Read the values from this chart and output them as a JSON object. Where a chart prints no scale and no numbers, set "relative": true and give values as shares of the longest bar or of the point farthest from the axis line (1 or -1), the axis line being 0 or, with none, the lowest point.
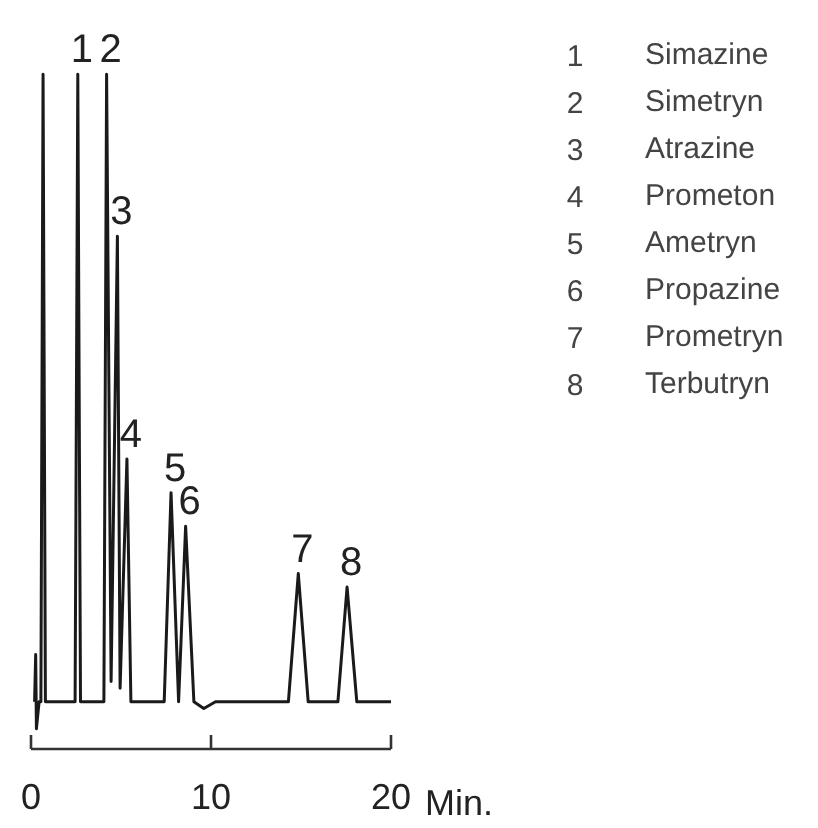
{
  "chart_data": {
    "type": "line",
    "relative": true,
    "x": [
      0.2,
      0.26,
      0.3,
      0.45,
      0.55,
      0.67,
      0.8,
      2.45,
      2.6,
      2.75,
      4.05,
      4.2,
      4.45,
      4.8,
      4.95,
      5.33,
      5.55,
      7.4,
      7.78,
      8.2,
      8.59,
      9.05,
      9.6,
      10.25,
      10.75,
      14.3,
      14.85,
      15.4,
      17.05,
      17.56,
      18.1,
      20
    ],
    "values": [
      0.07,
      0.14,
      0.03,
      0.07,
      0.07,
      1.0,
      0.07,
      0.07,
      1.0,
      0.07,
      0.07,
      1.0,
      0.1,
      0.76,
      0.09,
      0.43,
      0.07,
      0.07,
      0.38,
      0.07,
      0.33,
      0.07,
      0.06,
      0.07,
      0.07,
      0.07,
      0.26,
      0.07,
      0.07,
      0.24,
      0.07,
      0.07
    ],
    "color": "#1a1a1a",
    "xlim": [
      0,
      20
    ],
    "xticks": [
      0,
      10,
      20
    ],
    "xlabel": "Min.",
    "annotations": [
      {
        "text": "1",
        "x": 2.6,
        "y": 1.0
      },
      {
        "text": "2",
        "x": 4.2,
        "y": 1.0
      },
      {
        "text": "3",
        "x": 4.8,
        "y": 0.76
      },
      {
        "text": "4",
        "x": 5.33,
        "y": 0.43
      },
      {
        "text": "5",
        "x": 7.78,
        "y": 0.38
      },
      {
        "text": "6",
        "x": 8.59,
        "y": 0.33
      },
      {
        "text": "7",
        "x": 14.85,
        "y": 0.26
      },
      {
        "text": "8",
        "x": 17.56,
        "y": 0.24
      },
      "1 Simazine",
      "2 Simetryn",
      "3 Atrazine",
      "4 Prometon",
      "5 Ametryn",
      "6 Propazine",
      "7 Prometryn",
      "8 Terbutryn"
    ]
  }
}
